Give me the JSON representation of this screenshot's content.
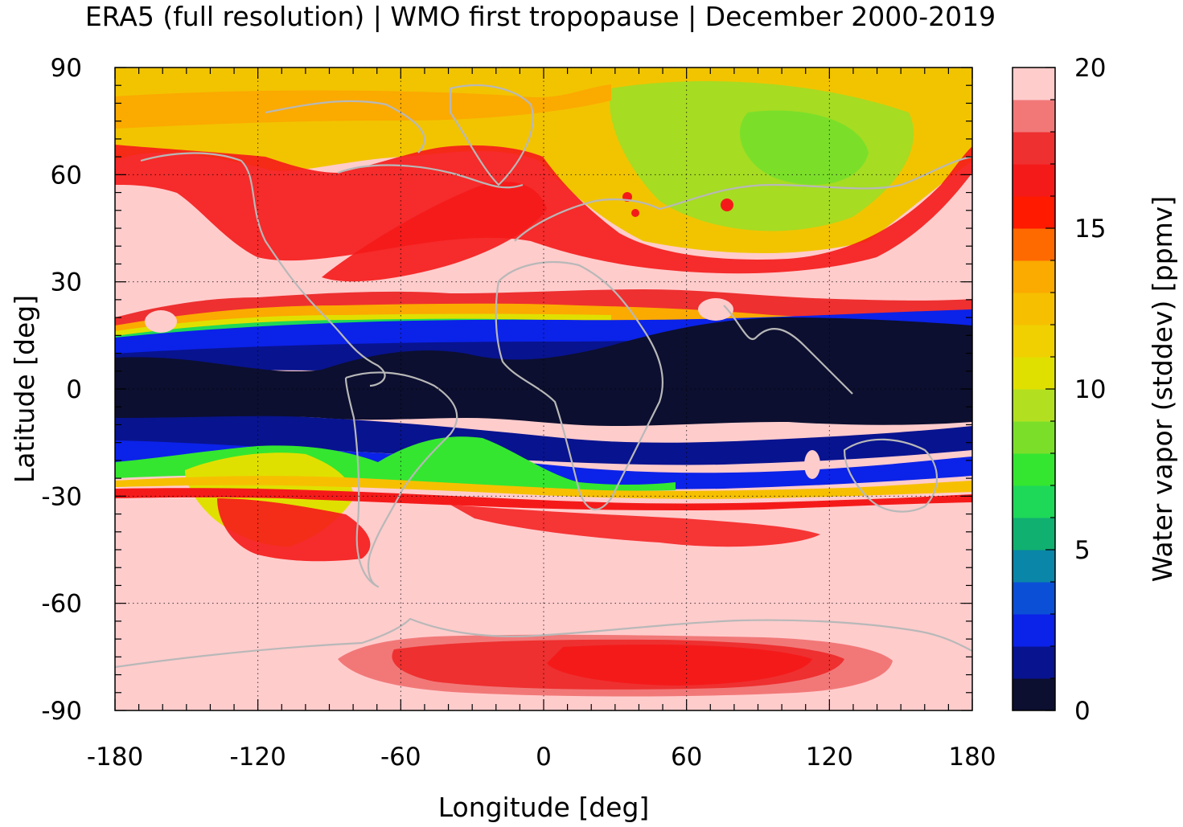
{
  "title": "ERA5 (full resolution) | WMO first tropopause | December 2000-2019",
  "chart_data": {
    "type": "heatmap",
    "title": "ERA5 (full resolution) | WMO first tropopause | December 2000-2019",
    "xlabel": "Longitude [deg]",
    "ylabel": "Latitude [deg]",
    "xlim": [
      -180,
      180
    ],
    "ylim": [
      -90,
      90
    ],
    "xticks": [
      "-180",
      "-120",
      "-60",
      "0",
      "60",
      "120",
      "180"
    ],
    "yticks": [
      "90",
      "60",
      "30",
      "0",
      "-30",
      "-60",
      "-90"
    ],
    "grid": true,
    "coastlines": true,
    "colorbar": {
      "label": "Water vapor (stddev) [ppmv]",
      "range": [
        0,
        20
      ],
      "ticks": [
        "0",
        "5",
        "10",
        "15",
        "20"
      ],
      "levels": [
        {
          "from": 0,
          "to": 1,
          "color": "#0c0f2f"
        },
        {
          "from": 1,
          "to": 2,
          "color": "#08138f"
        },
        {
          "from": 2,
          "to": 3,
          "color": "#0b22e8"
        },
        {
          "from": 3,
          "to": 4,
          "color": "#0b4fd6"
        },
        {
          "from": 4,
          "to": 5,
          "color": "#0a86a8"
        },
        {
          "from": 5,
          "to": 6,
          "color": "#10b070"
        },
        {
          "from": 6,
          "to": 7,
          "color": "#1ed858"
        },
        {
          "from": 7,
          "to": 8,
          "color": "#34e630"
        },
        {
          "from": 8,
          "to": 9,
          "color": "#7bdf2a"
        },
        {
          "from": 9,
          "to": 10,
          "color": "#b2e020"
        },
        {
          "from": 10,
          "to": 11,
          "color": "#e0e000"
        },
        {
          "from": 11,
          "to": 12,
          "color": "#f0d000"
        },
        {
          "from": 12,
          "to": 13,
          "color": "#f6c000"
        },
        {
          "from": 13,
          "to": 14,
          "color": "#fbaa00"
        },
        {
          "from": 14,
          "to": 15,
          "color": "#ff6a00"
        },
        {
          "from": 15,
          "to": 16,
          "color": "#ff1a00"
        },
        {
          "from": 16,
          "to": 17,
          "color": "#f51a1a"
        },
        {
          "from": 17,
          "to": 18,
          "color": "#ee3030"
        },
        {
          "from": 18,
          "to": 19,
          "color": "#f27878"
        },
        {
          "from": 19,
          "to": 20,
          "color": "#ffcccc"
        }
      ]
    },
    "colors": {
      "background": "#ffcccc",
      "coastline": "#b8b8b8"
    }
  }
}
